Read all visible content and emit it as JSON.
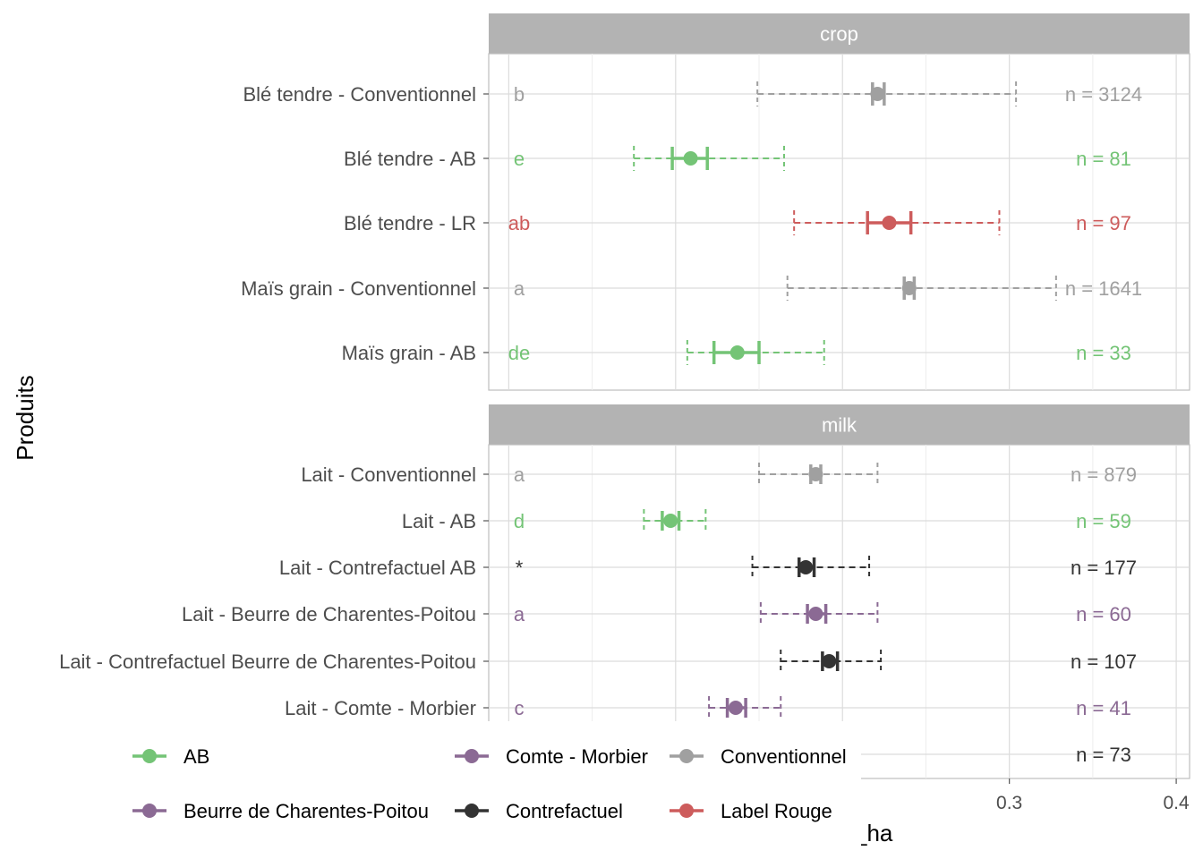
{
  "chart_data": {
    "type": "errorbar",
    "xlabel": "_ha",
    "ylabel": "Produits",
    "xlim": [
      -0.012,
      0.408
    ],
    "x_ticks": [
      {
        "value": 0.3,
        "label": "0.3"
      },
      {
        "value": 0.4,
        "label": "0.4"
      }
    ],
    "colors": {
      "AB": "#74c476",
      "Conventionnel": "#a0a0a0",
      "Label Rouge": "#cd5c5c",
      "Contrefactuel": "#333333",
      "Beurre de Charentes-Poitou": "#8b6a94",
      "Comte - Morbier": "#8b6a94"
    },
    "panels": [
      {
        "strip": "crop",
        "rows": [
          {
            "label": "Blé tendre - Conventionnel",
            "group": "Conventionnel",
            "letter": "b",
            "n": "n = 3124",
            "mean": 0.221,
            "ci": [
              0.218,
              0.225
            ],
            "range": [
              0.149,
              0.304
            ]
          },
          {
            "label": "Blé tendre - AB",
            "group": "AB",
            "letter": "e",
            "n": "n = 81",
            "mean": 0.109,
            "ci": [
              0.098,
              0.119
            ],
            "range": [
              0.075,
              0.165
            ]
          },
          {
            "label": "Blé tendre - LR",
            "group": "Label Rouge",
            "letter": "ab",
            "n": "n = 97",
            "mean": 0.228,
            "ci": [
              0.215,
              0.241
            ],
            "range": [
              0.171,
              0.294
            ]
          },
          {
            "label": "Maïs grain - Conventionnel",
            "group": "Conventionnel",
            "letter": "a",
            "n": "n = 1641",
            "mean": 0.24,
            "ci": [
              0.237,
              0.243
            ],
            "range": [
              0.167,
              0.328
            ]
          },
          {
            "label": "Maïs grain - AB",
            "group": "AB",
            "letter": "de",
            "n": "n = 33",
            "mean": 0.137,
            "ci": [
              0.123,
              0.15
            ],
            "range": [
              0.107,
              0.189
            ]
          }
        ]
      },
      {
        "strip": "milk",
        "rows": [
          {
            "label": "Lait - Conventionnel",
            "group": "Conventionnel",
            "letter": "a",
            "n": "n = 879",
            "mean": 0.184,
            "ci": [
              0.181,
              0.187
            ],
            "range": [
              0.15,
              0.221
            ]
          },
          {
            "label": "Lait - AB",
            "group": "AB",
            "letter": "d",
            "n": "n = 59",
            "mean": 0.097,
            "ci": [
              0.092,
              0.102
            ],
            "range": [
              0.081,
              0.118
            ]
          },
          {
            "label": "Lait - Contrefactuel AB",
            "group": "Contrefactuel",
            "letter": "*",
            "n": "n = 177",
            "mean": 0.178,
            "ci": [
              0.174,
              0.183
            ],
            "range": [
              0.146,
              0.216
            ]
          },
          {
            "label": "Lait - Beurre de Charentes-Poitou",
            "group": "Beurre de Charentes-Poitou",
            "letter": "a",
            "n": "n = 60",
            "mean": 0.184,
            "ci": [
              0.179,
              0.19
            ],
            "range": [
              0.151,
              0.221
            ]
          },
          {
            "label": "Lait - Contrefactuel Beurre de Charentes-Poitou",
            "group": "Contrefactuel",
            "letter": "",
            "n": "n = 107",
            "mean": 0.192,
            "ci": [
              0.188,
              0.197
            ],
            "range": [
              0.163,
              0.223
            ]
          },
          {
            "label": "Lait - Comte - Morbier",
            "group": "Comte - Morbier",
            "letter": "c",
            "n": "n = 41",
            "mean": 0.136,
            "ci": [
              0.131,
              0.142
            ],
            "range": [
              0.12,
              0.163
            ]
          },
          {
            "label": "",
            "group": "Contrefactuel",
            "letter": "",
            "n": "n = 73",
            "mean": null,
            "ci": null,
            "range": null
          }
        ]
      }
    ],
    "legend": {
      "position": "bottom",
      "items": [
        "AB",
        "Comte - Morbier",
        "Conventionnel",
        "Beurre de Charentes-Poitou",
        "Contrefactuel",
        "Label Rouge"
      ]
    }
  }
}
